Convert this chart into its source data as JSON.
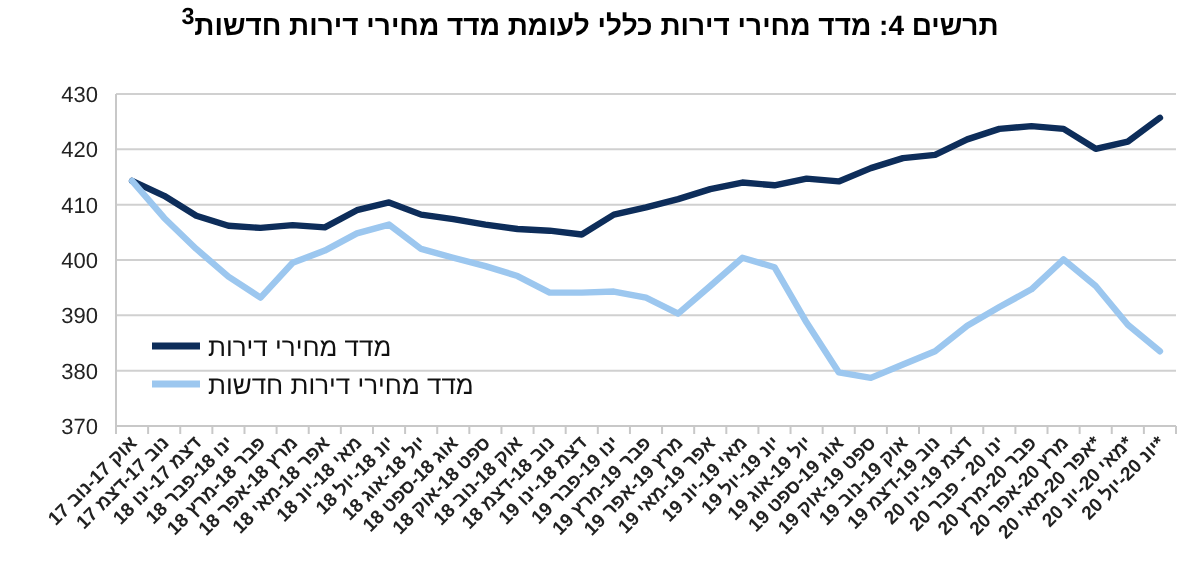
{
  "chart_data": {
    "type": "line",
    "title": "תרשים 4: מדד מחירי דירות כללי לעומת מדד מחירי דירות חדשות$^{3}$",
    "categories": [
      "אוק 17-נוב 17",
      "נוב 17-דצמ 17",
      "דצמ 17-ינו 18",
      "ינו 18-פבר 18",
      "פבר 18-מרץ 18",
      "מרץ 18-אפר 18",
      "אפר 18-מאי 18",
      "מאי 18-יונ 18",
      "יונ 18-יול 18",
      "יול 18-אוג 18",
      "אוג 18-ספט 18",
      "ספט 18-אוק 18",
      "אוק 18-נוב 18",
      "נוב 18-דצמ 18",
      "דצמ 18-ינו 19",
      "ינו 19-פבר 19",
      "פבר 19-מרץ 19",
      "מרץ 19-אפר 19",
      "אפר 19-מאי 19",
      "מאי 19-יונ 19",
      "יונ 19-יול 19",
      "יול 19-אוג 19",
      "אוג 19-ספט 19",
      "ספט 19-אוק 19",
      "אוק 19-נוב 19",
      "נוב 19-דצמ 19",
      "דצמ 19-ינו 20",
      "ינו 20 - פבר 20",
      "פבר 20-מרץ 20",
      "מרץ 20-אפר 20",
      "אפר 20-מאי 20*",
      "מאי 20-יונ 20*",
      "יונ 20-יול 20*"
    ],
    "series": [
      {
        "name": "מדד מחירי דירות",
        "color": "#0d2d5a",
        "values": [
          414.3,
          411.6,
          408.0,
          406.2,
          405.8,
          406.3,
          405.9,
          409.0,
          410.4,
          408.2,
          407.4,
          406.4,
          405.6,
          405.3,
          404.6,
          408.2,
          409.5,
          411.0,
          412.8,
          414.0,
          413.5,
          414.7,
          414.2,
          416.6,
          418.4,
          419.0,
          421.8,
          423.7,
          424.2,
          423.7,
          420.1,
          421.4,
          425.7
        ]
      },
      {
        "name": "מדד מחירי דירות חדשות",
        "color": "#9cc7ef",
        "values": [
          414.3,
          407.6,
          402.0,
          397.0,
          393.2,
          399.5,
          401.7,
          404.8,
          406.4,
          402.0,
          400.4,
          398.9,
          397.1,
          394.1,
          394.1,
          394.3,
          393.2,
          390.3,
          395.3,
          400.4,
          398.7,
          388.7,
          379.7,
          378.7,
          381.1,
          383.5,
          388.1,
          391.5,
          394.7,
          400.1,
          395.3,
          388.3,
          383.5
        ]
      }
    ],
    "ylim": [
      370,
      430
    ],
    "yticks": [
      370,
      380,
      390,
      400,
      410,
      420,
      430
    ],
    "grid": "y",
    "legend": "bottom left",
    "marker": "none",
    "line_style": "solid"
  }
}
